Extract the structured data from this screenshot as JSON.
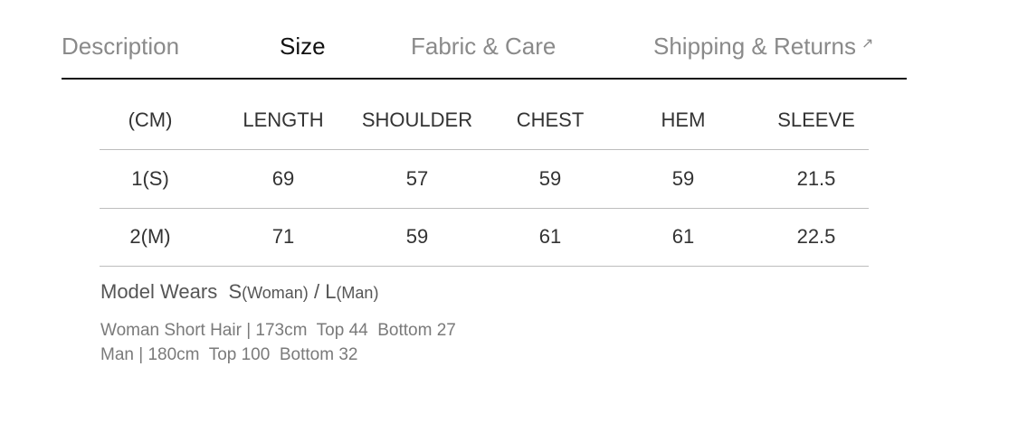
{
  "tabs": [
    {
      "label": "Description",
      "active": false
    },
    {
      "label": "Size",
      "active": true
    },
    {
      "label": "Fabric & Care",
      "active": false
    },
    {
      "label": "Shipping & Returns",
      "active": false,
      "icon": "external-arrow-icon",
      "icon_glyph": "↗"
    }
  ],
  "size_table": {
    "headers": [
      "(CM)",
      "LENGTH",
      "SHOULDER",
      "CHEST",
      "HEM",
      "SLEEVE"
    ],
    "rows": [
      [
        "1(S)",
        "69",
        "57",
        "59",
        "59",
        "21.5"
      ],
      [
        "2(M)",
        "71",
        "59",
        "61",
        "61",
        "22.5"
      ]
    ]
  },
  "model": {
    "label": "Model Wears",
    "size1": "S",
    "size1_note": "(Woman)",
    "separator": "/",
    "size2": "L",
    "size2_note": "(Man)",
    "details": [
      "Woman Short Hair | 173cm  Top 44  Bottom 27",
      "Man | 180cm  Top 100  Bottom 32"
    ]
  }
}
